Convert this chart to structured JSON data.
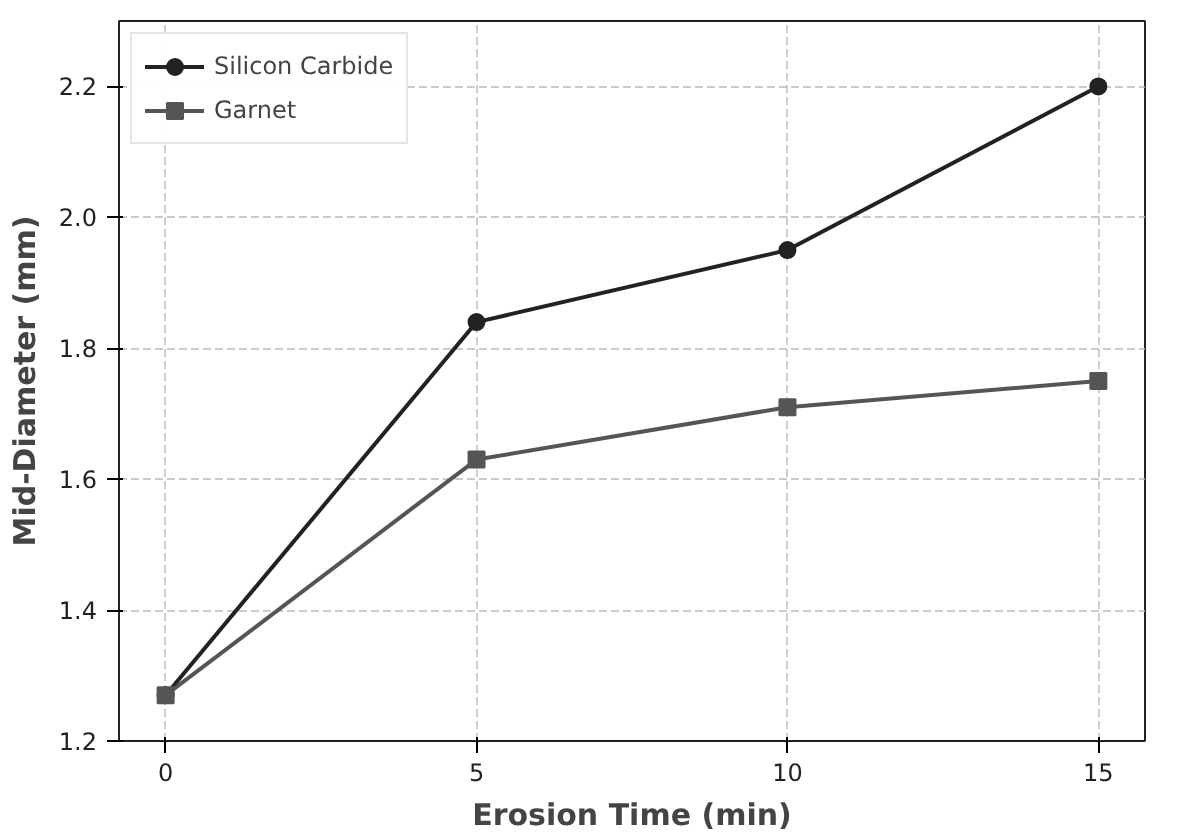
{
  "chart_data": {
    "type": "line",
    "xlabel": "Erosion Time (min)",
    "ylabel": "Mid-Diameter (mm)",
    "x": [
      0,
      5,
      10,
      15
    ],
    "series": [
      {
        "name": "Silicon Carbide",
        "color": "#222222",
        "values": [
          1.27,
          1.84,
          1.95,
          2.2
        ],
        "marker": "circle"
      },
      {
        "name": "Garnet",
        "color": "#555555",
        "values": [
          1.27,
          1.63,
          1.71,
          1.75
        ],
        "marker": "square"
      }
    ],
    "xlim": [
      -0.75,
      15.75
    ],
    "ylim": [
      1.2,
      2.3
    ],
    "xticks": [
      0,
      5,
      10,
      15
    ],
    "yticks": [
      1.2,
      1.4,
      1.6,
      1.8,
      {
        "value": 2,
        "label": "2.0"
      },
      2.2
    ],
    "grid": true,
    "legend": "top left",
    "line_style": "solid"
  }
}
